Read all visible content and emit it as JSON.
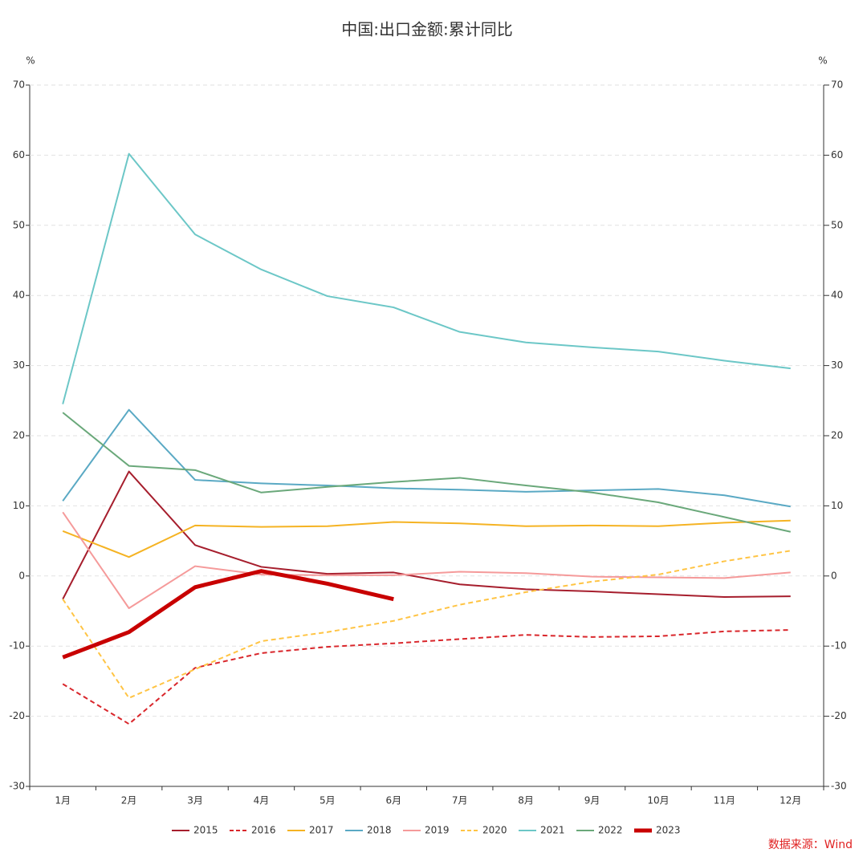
{
  "chart_data": {
    "type": "line",
    "title": "中国:出口金额:累计同比",
    "y_unit": "%",
    "y2_unit": "%",
    "source": "数据来源：Wind",
    "categories": [
      "1月",
      "2月",
      "3月",
      "4月",
      "5月",
      "6月",
      "7月",
      "8月",
      "9月",
      "10月",
      "11月",
      "12月"
    ],
    "ylim": [
      -30,
      70
    ],
    "yticks": [
      -30,
      -20,
      -10,
      0,
      10,
      20,
      30,
      40,
      50,
      60,
      70
    ],
    "y2lim": [
      -30,
      70
    ],
    "y2ticks": [
      -30,
      -20,
      -10,
      0,
      10,
      20,
      30,
      40,
      50,
      60,
      70
    ],
    "grid": true,
    "legend": "bottom",
    "series": [
      {
        "name": "2015",
        "color": "#a61e2d",
        "values": [
          -3.3,
          14.9,
          4.4,
          1.3,
          0.3,
          0.5,
          -1.2,
          -1.9,
          -2.2,
          -2.6,
          -3.0,
          -2.9
        ]
      },
      {
        "name": "2016",
        "color": "#d9262b",
        "dashed": true,
        "values": [
          -15.4,
          -21.1,
          -13.1,
          -11.0,
          -10.1,
          -9.6,
          -9.0,
          -8.4,
          -8.7,
          -8.6,
          -7.9,
          -7.7
        ]
      },
      {
        "name": "2017",
        "color": "#f5b323",
        "values": [
          6.4,
          2.7,
          7.2,
          7.0,
          7.1,
          7.7,
          7.5,
          7.1,
          7.2,
          7.1,
          7.6,
          7.9
        ]
      },
      {
        "name": "2018",
        "color": "#5aa9c4",
        "values": [
          10.7,
          23.7,
          13.7,
          13.2,
          12.9,
          12.5,
          12.3,
          12.0,
          12.2,
          12.4,
          11.5,
          9.9
        ]
      },
      {
        "name": "2019",
        "color": "#f59a9a",
        "values": [
          9.1,
          -4.6,
          1.4,
          0.2,
          0.1,
          0.1,
          0.6,
          0.4,
          -0.1,
          -0.2,
          -0.3,
          0.5
        ]
      },
      {
        "name": "2020",
        "color": "#ffc444",
        "dashed": true,
        "values": [
          -3.3,
          -17.4,
          -13.3,
          -9.3,
          -8.0,
          -6.4,
          -4.1,
          -2.3,
          -0.8,
          0.2,
          2.1,
          3.6
        ]
      },
      {
        "name": "2021",
        "color": "#6cc7c7",
        "values": [
          24.5,
          60.2,
          48.7,
          43.7,
          39.9,
          38.3,
          34.8,
          33.3,
          32.6,
          32.0,
          30.7,
          29.6
        ]
      },
      {
        "name": "2022",
        "color": "#6aa87a",
        "values": [
          23.3,
          15.7,
          15.1,
          11.9,
          12.7,
          13.4,
          14.0,
          12.9,
          11.9,
          10.5,
          8.4,
          6.3
        ]
      },
      {
        "name": "2023",
        "color": "#c80000",
        "linewidth": 5,
        "values": [
          -11.6,
          -8.0,
          -1.6,
          0.7,
          -1.1,
          -3.3,
          null,
          null,
          null,
          null,
          null,
          null
        ]
      }
    ]
  }
}
